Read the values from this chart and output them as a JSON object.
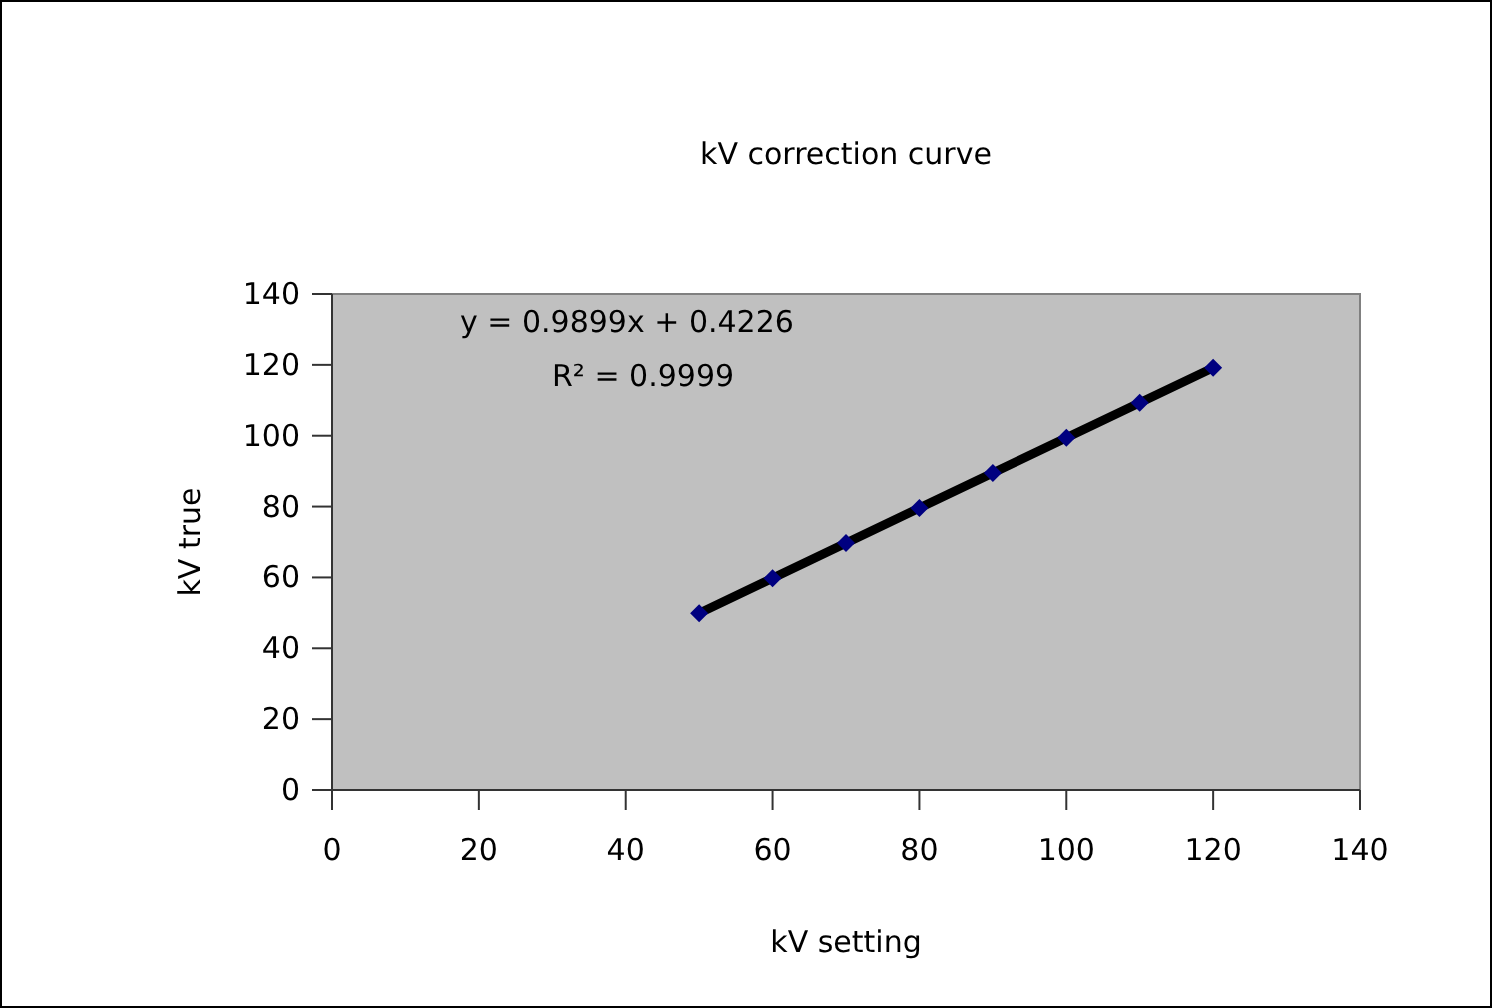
{
  "chart_data": {
    "type": "scatter",
    "title": "kV correction curve",
    "xlabel": "kV setting",
    "ylabel": "kV true",
    "x": [
      50,
      60,
      70,
      80,
      90,
      100,
      110,
      120
    ],
    "series": [
      {
        "color": "#000080",
        "marker": "diamond",
        "values": [
          49.9,
          59.8,
          69.7,
          79.6,
          89.5,
          99.4,
          109.3,
          119.2
        ]
      },
      {
        "type": "line",
        "color": "#000000",
        "marker": "none",
        "line_style": "solid",
        "x": [
          50,
          120
        ],
        "values": [
          49.9,
          119.2
        ]
      }
    ],
    "xlim": [
      0,
      140
    ],
    "xticks": [
      0,
      20,
      40,
      60,
      80,
      100,
      120,
      140
    ],
    "ylim": [
      0,
      140
    ],
    "yticks": [
      0,
      20,
      40,
      60,
      80,
      100,
      120,
      140
    ],
    "grid": false,
    "annotations": [
      "y = 0.9899x + 0.4226",
      "R² = 0.9999"
    ]
  }
}
